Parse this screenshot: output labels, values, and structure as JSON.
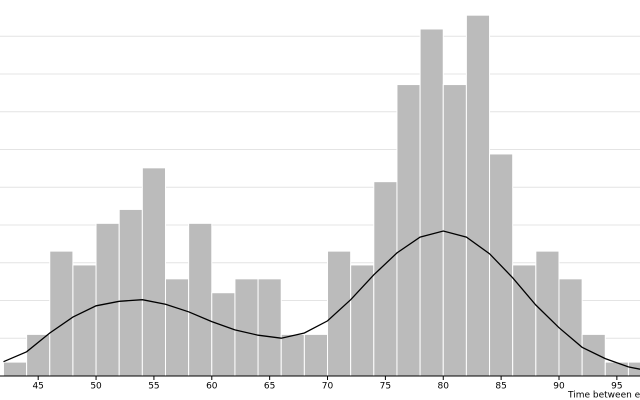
{
  "chart_data": {
    "type": "histogram",
    "xlabel": "Time between erup",
    "bins": [
      42,
      44,
      46,
      48,
      50,
      52,
      54,
      56,
      58,
      60,
      62,
      64,
      66,
      68,
      70,
      72,
      74,
      76,
      78,
      80,
      82,
      84,
      86,
      88,
      90,
      92,
      94,
      96,
      98
    ],
    "values": [
      0.00184,
      0.00551,
      0.01654,
      0.01471,
      0.02022,
      0.02206,
      0.02757,
      0.01287,
      0.02022,
      0.01103,
      0.01287,
      0.01287,
      0.00551,
      0.00551,
      0.01654,
      0.01471,
      0.02574,
      0.0386,
      0.04596,
      0.0386,
      0.04779,
      0.02941,
      0.01471,
      0.01654,
      0.01287,
      0.00551,
      0.00184,
      0.00184
    ],
    "color": "#bbbbbb",
    "density": {
      "x": [
        42,
        44,
        46,
        48,
        50,
        52,
        54,
        56,
        58,
        60,
        62,
        64,
        66,
        68,
        70,
        72,
        74,
        76,
        78,
        80,
        82,
        84,
        86,
        88,
        90,
        92,
        94,
        96,
        97
      ],
      "values": [
        0.0019,
        0.0032,
        0.0057,
        0.0078,
        0.0093,
        0.0099,
        0.0101,
        0.0095,
        0.0085,
        0.0072,
        0.0061,
        0.0054,
        0.005,
        0.0057,
        0.0073,
        0.0101,
        0.0134,
        0.0163,
        0.0184,
        0.0192,
        0.0184,
        0.0162,
        0.013,
        0.0094,
        0.0064,
        0.0038,
        0.0023,
        0.0012,
        0.0009
      ],
      "color": "#000000"
    },
    "xlim": [
      41.7,
      97
    ],
    "ylim": [
      0,
      0.0498
    ],
    "xticks": [
      45,
      50,
      55,
      60,
      65,
      70,
      75,
      80,
      85,
      90,
      95
    ],
    "yticks": [
      0.005,
      0.01,
      0.015,
      0.02,
      0.025,
      0.03,
      0.035,
      0.04,
      0.045
    ],
    "grid": true
  }
}
